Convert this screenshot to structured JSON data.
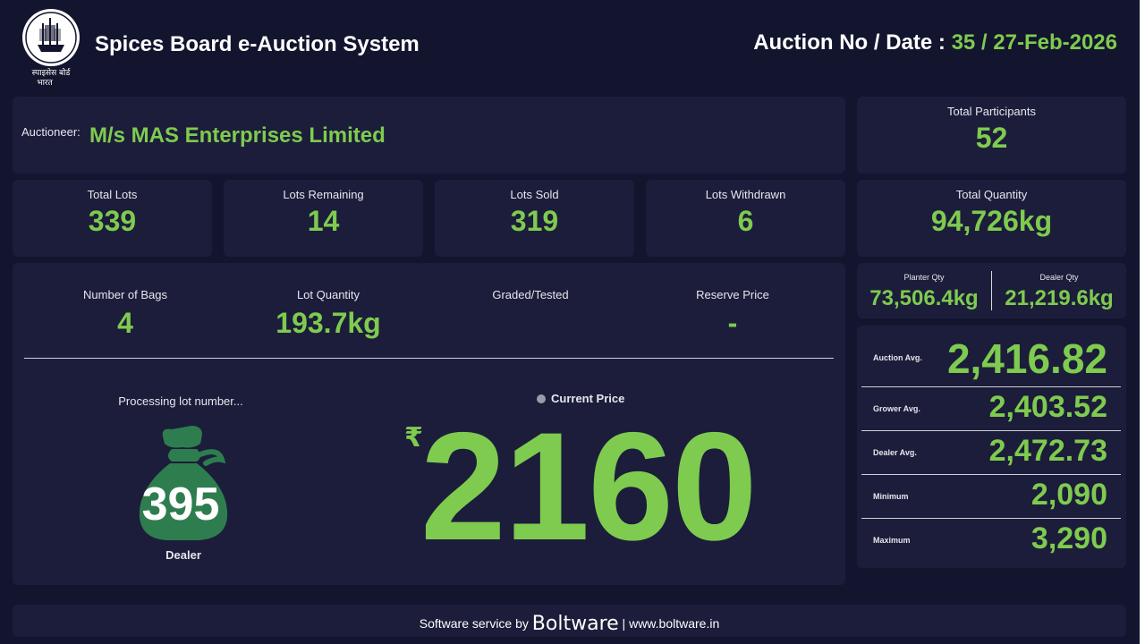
{
  "header": {
    "logo_text": "SPICES BOARD INDIA स्पाइसेस बोर्ड भारत",
    "title": "Spices Board e-Auction System",
    "auction_label": "Auction No / Date : ",
    "auction_value": "35 / 27-Feb-2026"
  },
  "auctioneer": {
    "label": "Auctioneer:",
    "name": "M/s MAS Enterprises Limited"
  },
  "stats": {
    "total_participants": {
      "label": "Total Participants",
      "value": "52"
    },
    "total_lots": {
      "label": "Total Lots",
      "value": "339"
    },
    "lots_remaining": {
      "label": "Lots Remaining",
      "value": "14"
    },
    "lots_sold": {
      "label": "Lots Sold",
      "value": "319"
    },
    "lots_withdrawn": {
      "label": "Lots Withdrawn",
      "value": "6"
    },
    "total_quantity": {
      "label": "Total Quantity",
      "value": "94,726kg"
    },
    "planter_qty": {
      "label": "Planter Qty",
      "value": "73,506.4kg"
    },
    "dealer_qty": {
      "label": "Dealer Qty",
      "value": "21,219.6kg"
    }
  },
  "lot": {
    "bags": {
      "label": "Number of Bags",
      "value": "4"
    },
    "quantity": {
      "label": "Lot Quantity",
      "value": "193.7kg"
    },
    "graded": {
      "label": "Graded/Tested",
      "value": ""
    },
    "reserve": {
      "label": "Reserve Price",
      "value": "-"
    },
    "processing_label": "Processing lot number...",
    "lot_number": "395",
    "seller_type": "Dealer",
    "current_price_label": "Current Price",
    "currency_symbol": "₹",
    "current_price": "2160"
  },
  "averages": {
    "auction": {
      "label": "Auction Avg.",
      "value": "2,416.82"
    },
    "grower": {
      "label": "Grower Avg.",
      "value": "2,403.52"
    },
    "dealer": {
      "label": "Dealer Avg.",
      "value": "2,472.73"
    },
    "minimum": {
      "label": "Minimum",
      "value": "2,090"
    },
    "maximum": {
      "label": "Maximum",
      "value": "3,290"
    }
  },
  "footer": {
    "prefix": "Software service by ",
    "brand": "Boltware",
    "suffix": " | www.boltware.in"
  },
  "colors": {
    "background": "#13142e",
    "card": "#1c1d3a",
    "accent": "#7ecb4f",
    "bag": "#2e7d4f"
  },
  "icons": {
    "logo": "spices-board-ship-emblem",
    "bag": "money-bag-icon",
    "dot": "status-dot-icon"
  }
}
